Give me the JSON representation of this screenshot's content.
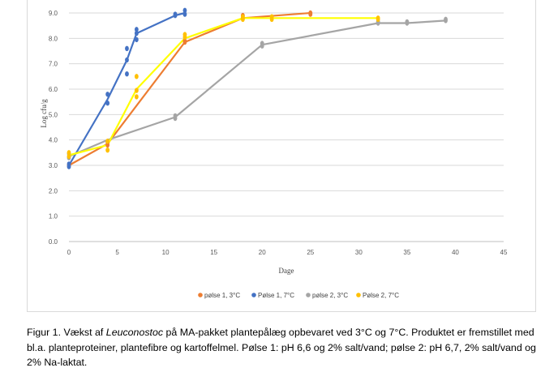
{
  "chart_data": {
    "type": "scatter",
    "title": "",
    "xlabel": "Dage",
    "ylabel": "Log cfu/g",
    "xlim": [
      0,
      45
    ],
    "ylim": [
      0,
      9.0
    ],
    "x_ticks": [
      "0",
      "5",
      "10",
      "15",
      "20",
      "25",
      "30",
      "35",
      "40",
      "45"
    ],
    "y_ticks": [
      "0.0",
      "1.0",
      "2.0",
      "3.0",
      "4.0",
      "5.0",
      "6.0",
      "7.0",
      "8.0",
      "9.0"
    ],
    "grid": "horizontal",
    "legend_position": "bottom",
    "series": [
      {
        "name": "pølse 1, 3°C",
        "color": "#ed7d31",
        "points": [
          [
            0,
            3.0
          ],
          [
            4,
            3.8
          ],
          [
            4,
            3.9
          ],
          [
            12,
            7.9
          ],
          [
            12,
            7.85
          ],
          [
            18,
            8.8
          ],
          [
            18,
            8.9
          ],
          [
            25,
            9.0
          ],
          [
            25,
            8.95
          ]
        ],
        "line": [
          [
            0,
            3.0
          ],
          [
            4,
            3.85
          ],
          [
            12,
            7.85
          ],
          [
            18,
            8.8
          ],
          [
            25,
            9.0
          ]
        ]
      },
      {
        "name": "Pølse 1, 7°C",
        "color": "#4472c4",
        "points": [
          [
            0,
            2.95
          ],
          [
            0,
            3.05
          ],
          [
            4,
            5.8
          ],
          [
            4,
            5.45
          ],
          [
            6,
            7.6
          ],
          [
            6,
            7.15
          ],
          [
            6,
            6.6
          ],
          [
            7,
            8.35
          ],
          [
            7,
            8.2
          ],
          [
            7,
            7.95
          ],
          [
            11,
            8.9
          ],
          [
            11,
            8.95
          ],
          [
            12,
            9.1
          ],
          [
            12,
            8.95
          ]
        ],
        "line": [
          [
            0,
            3.0
          ],
          [
            4,
            5.6
          ],
          [
            6,
            7.15
          ],
          [
            7,
            8.2
          ],
          [
            11,
            8.9
          ],
          [
            12,
            9.0
          ]
        ]
      },
      {
        "name": "pølse 2, 3°C",
        "color": "#a5a5a5",
        "points": [
          [
            0,
            3.45
          ],
          [
            0,
            3.3
          ],
          [
            11,
            4.85
          ],
          [
            11,
            4.95
          ],
          [
            20,
            7.7
          ],
          [
            20,
            7.8
          ],
          [
            32,
            8.6
          ],
          [
            32,
            8.65
          ],
          [
            35,
            8.6
          ],
          [
            35,
            8.65
          ],
          [
            39,
            8.7
          ],
          [
            39,
            8.75
          ]
        ],
        "line": [
          [
            0,
            3.35
          ],
          [
            4,
            4.0
          ],
          [
            11,
            4.9
          ],
          [
            20,
            7.75
          ],
          [
            32,
            8.6
          ],
          [
            35,
            8.6
          ],
          [
            39,
            8.7
          ]
        ]
      },
      {
        "name": "Pølse 2, 7°C",
        "color": "#ffc000",
        "line_color": "#ffff00",
        "points": [
          [
            0,
            3.5
          ],
          [
            0,
            3.35
          ],
          [
            4,
            3.95
          ],
          [
            4,
            3.6
          ],
          [
            7,
            6.5
          ],
          [
            7,
            5.95
          ],
          [
            7,
            5.7
          ],
          [
            12,
            8.15
          ],
          [
            12,
            8.05
          ],
          [
            18,
            8.75
          ],
          [
            18,
            8.85
          ],
          [
            21,
            8.75
          ],
          [
            21,
            8.85
          ],
          [
            32,
            8.8
          ],
          [
            32,
            8.75
          ]
        ],
        "line": [
          [
            0,
            3.4
          ],
          [
            4,
            3.8
          ],
          [
            7,
            6.0
          ],
          [
            12,
            8.0
          ],
          [
            18,
            8.8
          ],
          [
            21,
            8.8
          ],
          [
            32,
            8.8
          ]
        ]
      }
    ]
  },
  "caption": {
    "before_italic": "Figur 1. Vækst af ",
    "italic": "Leuconostoc",
    "after_italic": " på MA-pakket plantepålæg opbevaret ved 3°C og 7°C. Produktet er fremstillet med bl.a. planteproteiner, plantefibre og kartoffelmel. Pølse 1: pH 6,6 og 2% salt/vand; pølse 2: pH 6,7, 2% salt/vand og 2% Na-laktat."
  }
}
